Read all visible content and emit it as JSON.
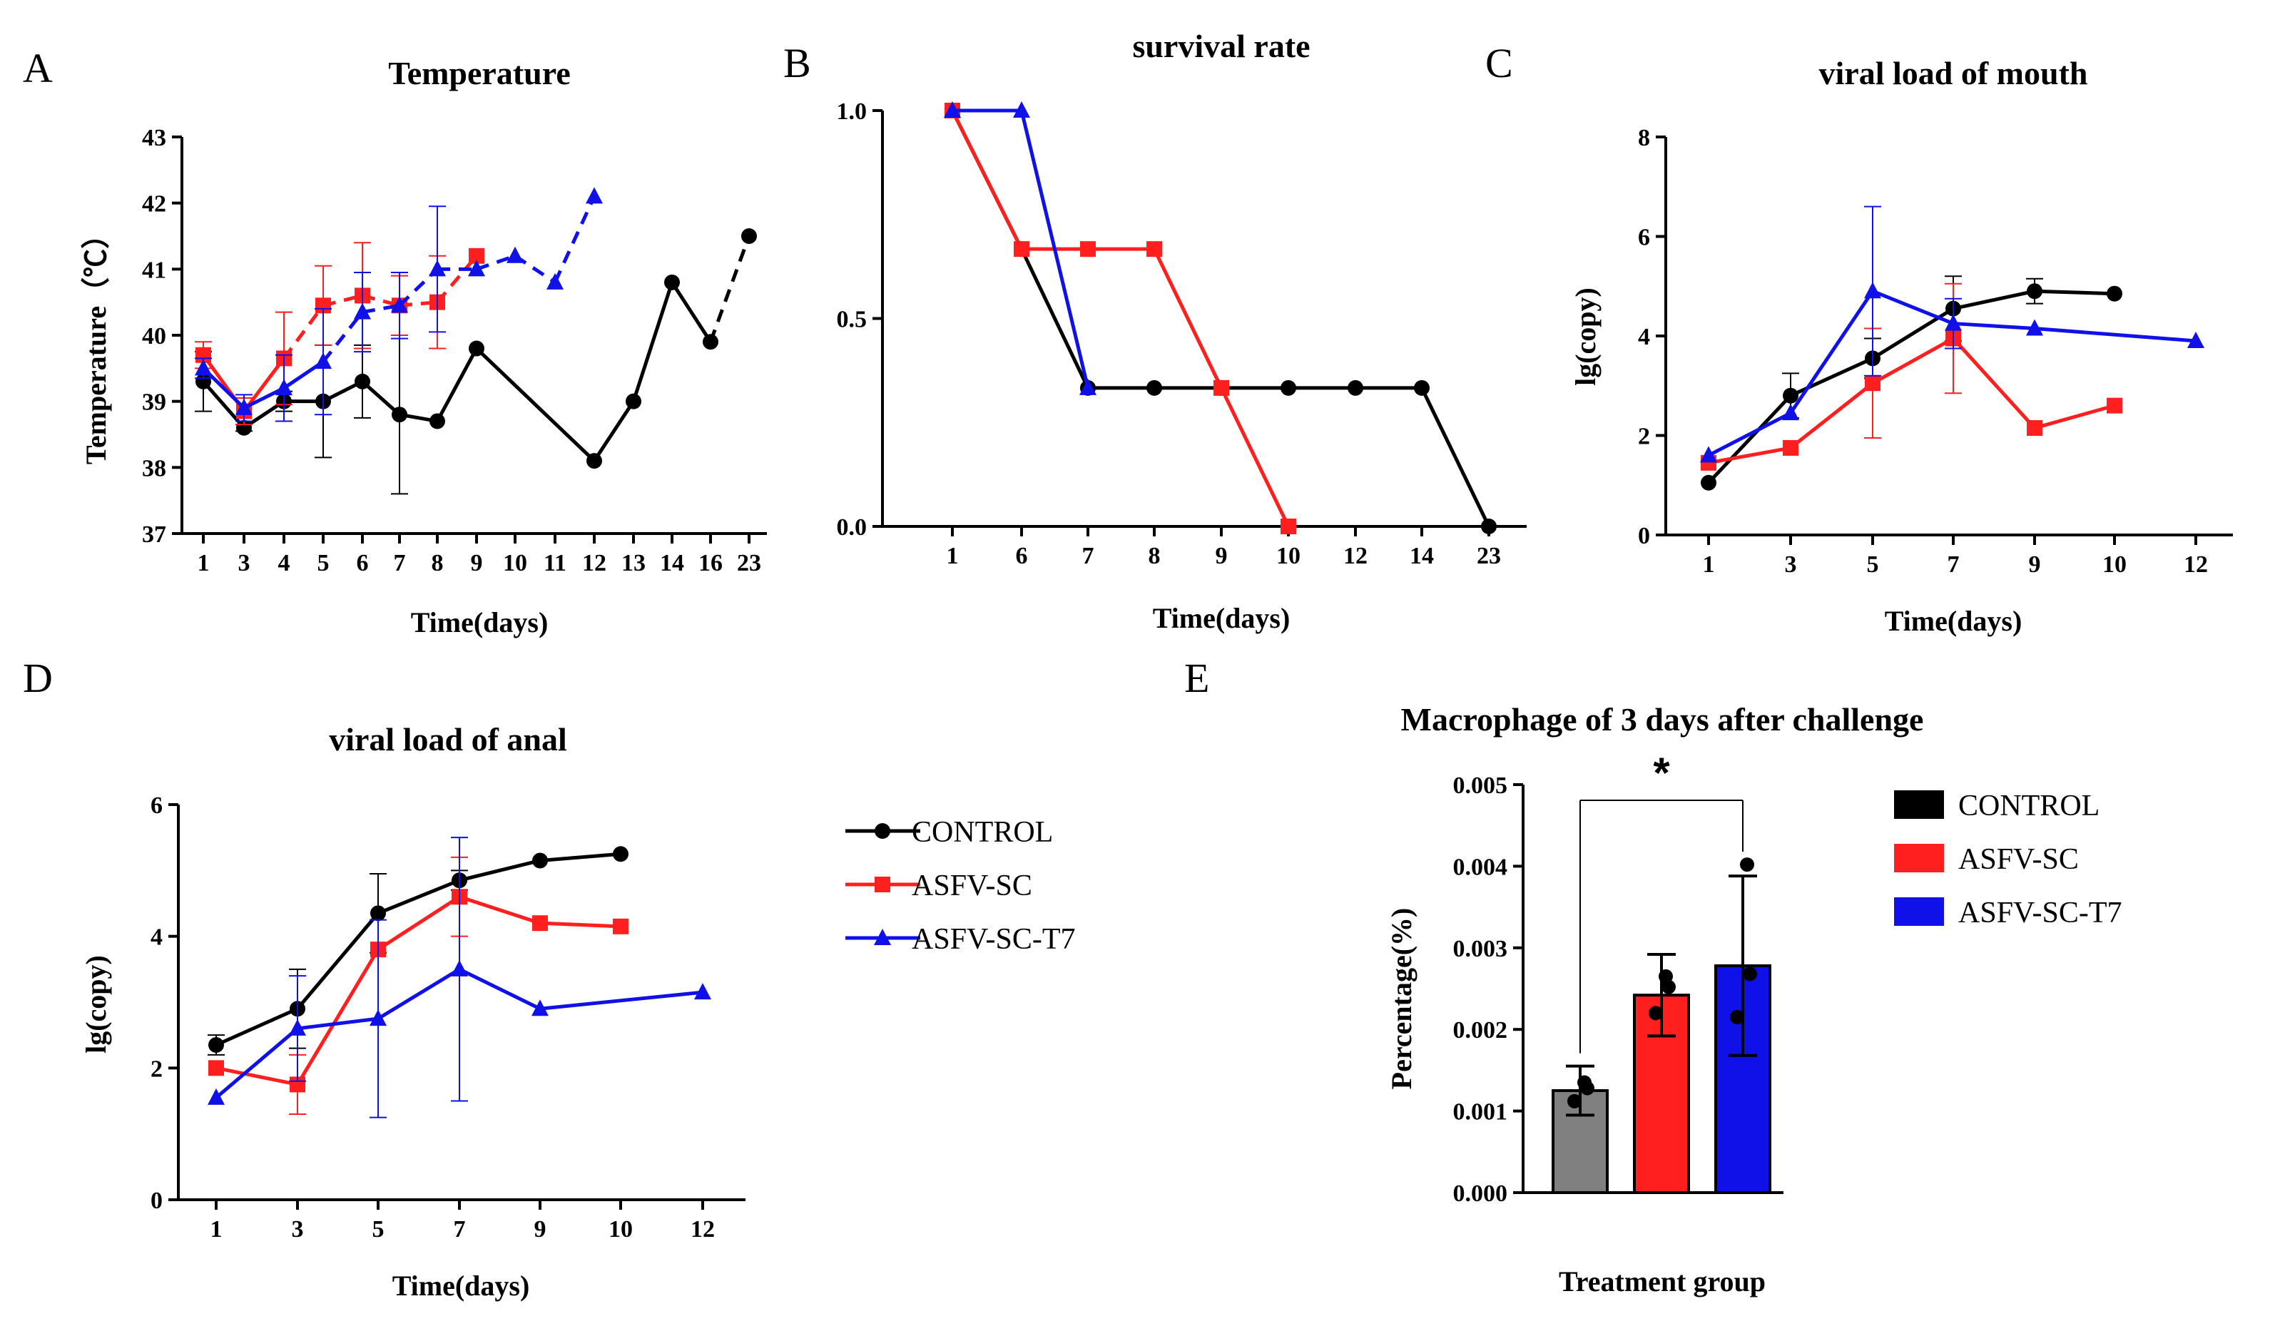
{
  "colors": {
    "control": "#000000",
    "sc": "#ff1f1f",
    "t7": "#1010e8",
    "gray": "#808080"
  },
  "legend": {
    "line_entries": [
      "CONTROL",
      "ASFV-SC",
      "ASFV-SC-T7"
    ],
    "bar_entries": [
      "CONTROL",
      "ASFV-SC",
      "ASFV-SC-T7"
    ]
  },
  "chart_data": [
    {
      "panel": "A",
      "type": "line",
      "title": "Temperature",
      "xlabel": "Time(days)",
      "ylabel": "Temperature（℃）",
      "categories": [
        "1",
        "3",
        "4",
        "5",
        "6",
        "7",
        "8",
        "9",
        "10",
        "11",
        "12",
        "13",
        "14",
        "16",
        "23"
      ],
      "ylim": [
        37,
        43
      ],
      "yticks": [
        "37",
        "38",
        "39",
        "40",
        "41",
        "42",
        "43"
      ],
      "series": [
        {
          "name": "CONTROL",
          "color": "control",
          "marker": "circle",
          "points": [
            [
              0,
              39.3,
              0.45
            ],
            [
              1,
              38.6,
              0.05
            ],
            [
              2,
              39.0,
              0.15
            ],
            [
              3,
              39.0,
              0.85
            ],
            [
              4,
              39.3,
              0.55
            ],
            [
              5,
              38.8,
              1.2
            ],
            [
              6,
              38.7,
              0
            ],
            [
              7,
              39.8,
              0
            ],
            [
              10,
              38.1,
              0
            ],
            [
              11,
              39.0,
              0
            ],
            [
              12,
              40.8,
              0
            ],
            [
              13,
              39.9,
              0
            ]
          ],
          "dashed_tail": [
            [
              13,
              39.9
            ],
            [
              14,
              41.5
            ]
          ]
        },
        {
          "name": "ASFV-SC",
          "color": "sc",
          "marker": "square",
          "points": [
            [
              0,
              39.7,
              0.2
            ],
            [
              1,
              38.85,
              0.2
            ],
            [
              2,
              39.65,
              0.7
            ],
            [
              3,
              40.45,
              0.6
            ],
            [
              4,
              40.6,
              0.8
            ],
            [
              5,
              40.45,
              0.45
            ],
            [
              6,
              40.5,
              0.7
            ],
            [
              7,
              41.2,
              0
            ]
          ],
          "dashed_from": 2
        },
        {
          "name": "ASFV-SC-T7",
          "color": "t7",
          "marker": "triangle",
          "points": [
            [
              0,
              39.5,
              0.15
            ],
            [
              1,
              38.9,
              0.2
            ],
            [
              2,
              39.2,
              0.5
            ],
            [
              3,
              39.6,
              0.8
            ],
            [
              4,
              40.35,
              0.6
            ],
            [
              5,
              40.45,
              0.5
            ],
            [
              6,
              41.0,
              0.95
            ],
            [
              7,
              41.0,
              0
            ],
            [
              8,
              41.2,
              0
            ],
            [
              9,
              40.8,
              0
            ],
            [
              10,
              42.1,
              0
            ]
          ],
          "dashed_from": 3
        }
      ]
    },
    {
      "panel": "B",
      "type": "line",
      "title": "survival rate",
      "xlabel": "Time(days)",
      "ylabel": "",
      "categories": [
        "1",
        "6",
        "7",
        "8",
        "9",
        "10",
        "12",
        "14",
        "23"
      ],
      "ylim": [
        0,
        1
      ],
      "yticks": [
        "0.0",
        "0.5",
        "1.0"
      ],
      "series": [
        {
          "name": "CONTROL",
          "color": "control",
          "marker": "circle",
          "points": [
            [
              0,
              1.0
            ],
            [
              1,
              0.667
            ],
            [
              2,
              0.333
            ],
            [
              3,
              0.333
            ],
            [
              4,
              0.333
            ],
            [
              5,
              0.333
            ],
            [
              6,
              0.333
            ],
            [
              7,
              0.333
            ],
            [
              8,
              0.0
            ]
          ]
        },
        {
          "name": "ASFV-SC",
          "color": "sc",
          "marker": "square",
          "points": [
            [
              0,
              1.0
            ],
            [
              1,
              0.667
            ],
            [
              2,
              0.667
            ],
            [
              3,
              0.667
            ],
            [
              4,
              0.333
            ],
            [
              5,
              0.0
            ]
          ]
        },
        {
          "name": "ASFV-SC-T7",
          "color": "t7",
          "marker": "triangle",
          "points": [
            [
              0,
              1.0
            ],
            [
              1,
              1.0
            ],
            [
              2,
              0.333
            ]
          ]
        }
      ]
    },
    {
      "panel": "C",
      "type": "line",
      "title": "viral load of mouth",
      "xlabel": "Time(days)",
      "ylabel": "lg(copy)",
      "categories": [
        "1",
        "3",
        "5",
        "7",
        "9",
        "10",
        "12"
      ],
      "ylim": [
        0,
        8
      ],
      "yticks": [
        "0",
        "2",
        "4",
        "6",
        "8"
      ],
      "series": [
        {
          "name": "CONTROL",
          "color": "control",
          "marker": "circle",
          "points": [
            [
              0,
              1.05,
              0
            ],
            [
              1,
              2.8,
              0.45
            ],
            [
              2,
              3.55,
              0.4
            ],
            [
              3,
              4.55,
              0.65
            ],
            [
              4,
              4.9,
              0.25
            ],
            [
              5,
              4.85,
              0
            ]
          ]
        },
        {
          "name": "ASFV-SC",
          "color": "sc",
          "marker": "square",
          "points": [
            [
              0,
              1.45,
              0
            ],
            [
              1,
              1.75,
              0
            ],
            [
              2,
              3.05,
              1.1
            ],
            [
              3,
              3.95,
              1.1
            ],
            [
              4,
              2.15,
              0
            ],
            [
              5,
              2.6,
              0
            ]
          ]
        },
        {
          "name": "ASFV-SC-T7",
          "color": "t7",
          "marker": "triangle",
          "points": [
            [
              0,
              1.6,
              0
            ],
            [
              1,
              2.45,
              0
            ],
            [
              2,
              4.9,
              1.7
            ],
            [
              3,
              4.25,
              0.5
            ],
            [
              4,
              4.15,
              0
            ],
            [
              6,
              3.9,
              0
            ]
          ]
        }
      ]
    },
    {
      "panel": "D",
      "type": "line",
      "title": "viral load of anal",
      "xlabel": "Time(days)",
      "ylabel": "lg(copy)",
      "categories": [
        "1",
        "3",
        "5",
        "7",
        "9",
        "10",
        "12"
      ],
      "ylim": [
        0,
        6
      ],
      "yticks": [
        "0",
        "2",
        "4",
        "6"
      ],
      "series": [
        {
          "name": "CONTROL",
          "color": "control",
          "marker": "circle",
          "points": [
            [
              0,
              2.35,
              0.15
            ],
            [
              1,
              2.9,
              0.6
            ],
            [
              2,
              4.35,
              0.6
            ],
            [
              3,
              4.85,
              0.15
            ],
            [
              4,
              5.15,
              0
            ],
            [
              5,
              5.25,
              0
            ]
          ]
        },
        {
          "name": "ASFV-SC",
          "color": "sc",
          "marker": "square",
          "points": [
            [
              0,
              2.0,
              0
            ],
            [
              1,
              1.75,
              0.45
            ],
            [
              2,
              3.8,
              0
            ],
            [
              3,
              4.6,
              0.6
            ],
            [
              4,
              4.2,
              0
            ],
            [
              5,
              4.15,
              0
            ]
          ]
        },
        {
          "name": "ASFV-SC-T7",
          "color": "t7",
          "marker": "triangle",
          "points": [
            [
              0,
              1.55,
              0
            ],
            [
              1,
              2.6,
              0.8
            ],
            [
              2,
              2.75,
              1.5
            ],
            [
              3,
              3.5,
              2.0
            ],
            [
              4,
              2.9,
              0
            ],
            [
              6,
              3.15,
              0
            ]
          ]
        }
      ]
    },
    {
      "panel": "E",
      "type": "bar",
      "title": "Macrophage of 3 days after challenge",
      "xlabel": "Treatment group",
      "ylabel": "Percentage(%)",
      "categories": [
        "CONTROL",
        "ASFV-SC",
        "ASFV-SC-T7"
      ],
      "values": [
        0.00125,
        0.00242,
        0.00278
      ],
      "errors": [
        0.0003,
        0.0005,
        0.0011
      ],
      "dots": [
        [
          0.00135,
          0.00112,
          0.00128
        ],
        [
          0.00265,
          0.0022,
          0.00252
        ],
        [
          0.00402,
          0.00215,
          0.00268
        ]
      ],
      "bar_colors": [
        "gray",
        "sc",
        "t7"
      ],
      "ylim": [
        0,
        0.005
      ],
      "yticks": [
        "0.000",
        "0.001",
        "0.002",
        "0.003",
        "0.004",
        "0.005"
      ],
      "significance": "*"
    }
  ]
}
